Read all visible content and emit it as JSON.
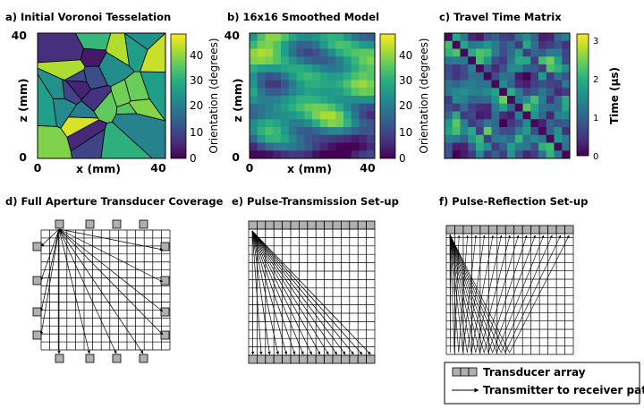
{
  "panels": {
    "a": {
      "title": "a) Initial Voronoi Tesselation",
      "xlabel": "x (mm)",
      "ylabel": "z (mm)",
      "x_ticks": [
        "0",
        "40"
      ],
      "y_ticks": [
        "40",
        "0"
      ],
      "colorbar": {
        "label": "Orientation (degrees)",
        "ticks": [
          "40",
          "30",
          "20",
          "10",
          "0"
        ],
        "range": [
          0,
          45
        ]
      }
    },
    "b": {
      "title": "b) 16x16 Smoothed Model",
      "xlabel": "x (mm)",
      "ylabel": "z (mm)",
      "x_ticks": [
        "0",
        "40"
      ],
      "y_ticks": [
        "40",
        "0"
      ],
      "grid_size": 16,
      "colorbar": {
        "label": "Orientation (degrees)",
        "ticks": [
          "40",
          "30",
          "20",
          "10",
          "0"
        ],
        "range": [
          0,
          45
        ]
      }
    },
    "c": {
      "title": "c) Travel Time Matrix",
      "colorbar": {
        "label": "Time (µs)",
        "ticks": [
          "3",
          "2",
          "1",
          "0"
        ],
        "range": [
          0,
          3.2
        ]
      }
    },
    "d": {
      "title": "d) Full Aperture Transducer Coverage"
    },
    "e": {
      "title": "e) Pulse-Transmission Set-up"
    },
    "f": {
      "title": "f) Pulse-Reflection Set-up"
    }
  },
  "legend": {
    "transducer_label": "Transducer array",
    "path_label": "Transmitter to receiver path"
  },
  "colors": {
    "viridis_low": "#440154",
    "viridis_mid": "#21918c",
    "viridis_high": "#fde725",
    "transducer_fill": "#b0b0b0"
  }
}
